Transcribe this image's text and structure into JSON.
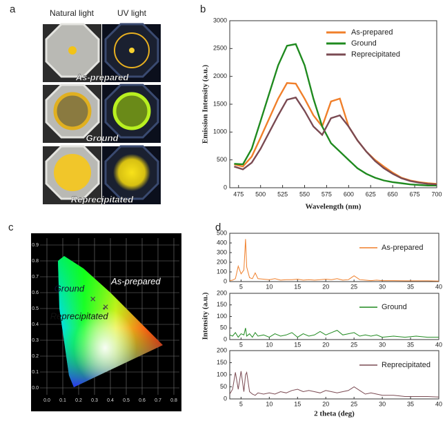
{
  "panel_labels": [
    "a",
    "b",
    "c",
    "d"
  ],
  "photos": {
    "columns": [
      "Natural light",
      "UV light"
    ],
    "rows": [
      "As-prepared",
      "Ground",
      "Reprecipitated"
    ]
  },
  "chart_data": [
    {
      "type": "line",
      "x_label": "Wavelength (nm)",
      "y_label": "Emission Intensity (a.u.)",
      "x": [
        470,
        480,
        490,
        500,
        510,
        520,
        530,
        540,
        550,
        560,
        570,
        580,
        590,
        600,
        610,
        620,
        630,
        640,
        650,
        660,
        670,
        680,
        690,
        700
      ],
      "series": [
        {
          "name": "As-prepared",
          "color": "#f07f2a",
          "values": [
            420,
            380,
            560,
            900,
            1250,
            1600,
            1880,
            1870,
            1600,
            1300,
            1100,
            1550,
            1600,
            1100,
            850,
            650,
            500,
            380,
            270,
            180,
            130,
            100,
            80,
            70
          ]
        },
        {
          "name": "Ground",
          "color": "#1f8a1f",
          "values": [
            430,
            420,
            700,
            1200,
            1700,
            2200,
            2550,
            2580,
            2200,
            1600,
            1100,
            800,
            650,
            500,
            350,
            250,
            180,
            130,
            100,
            80,
            60,
            50,
            40,
            40
          ]
        },
        {
          "name": "Reprecipitated",
          "color": "#7a4a52",
          "values": [
            380,
            330,
            450,
            700,
            1000,
            1300,
            1580,
            1620,
            1380,
            1100,
            950,
            1250,
            1300,
            1100,
            850,
            650,
            480,
            350,
            250,
            170,
            120,
            90,
            70,
            60
          ]
        }
      ],
      "xlim": [
        465,
        700
      ],
      "xticks": [
        475,
        500,
        525,
        550,
        575,
        600,
        625,
        650,
        675,
        700
      ],
      "ylim": [
        0,
        3000
      ],
      "yticks": [
        0,
        500,
        1000,
        1500,
        2000,
        2500,
        3000
      ],
      "legend": "upper right"
    },
    {
      "type": "cie",
      "points": [
        {
          "name": "Ground",
          "x": 0.29,
          "y": 0.56
        },
        {
          "name": "As-prepared",
          "x": 0.37,
          "y": 0.51
        },
        {
          "name": "Reprecipitated",
          "x": 0.36,
          "y": 0.5
        }
      ],
      "xlim": [
        0,
        0.8
      ],
      "xticks": [
        {
          "value": 0,
          "label": "0.0"
        },
        {
          "value": 0.1,
          "label": "0.1"
        },
        {
          "value": 0.2,
          "label": "0.2"
        },
        {
          "value": 0.3,
          "label": "0.3"
        },
        {
          "value": 0.4,
          "label": "0.4"
        },
        {
          "value": 0.5,
          "label": "0.5"
        },
        {
          "value": 0.6,
          "label": "0.6"
        },
        {
          "value": 0.7,
          "label": "0.7"
        },
        {
          "value": 0.8,
          "label": "0.8"
        }
      ],
      "ylim": [
        0,
        0.9
      ],
      "yticks": [
        {
          "value": 0,
          "label": "0.0"
        },
        0.1,
        0.2,
        0.3,
        0.4,
        0.5,
        0.6,
        0.7,
        0.8,
        0.9
      ],
      "grid": true
    },
    {
      "type": "stacked_line",
      "x_label": "2 theta (deg)",
      "y_label": "Intensity (a.u.)",
      "x": [
        3,
        3.5,
        4,
        4.5,
        5,
        5.5,
        5.8,
        6,
        6.5,
        7,
        7.5,
        8,
        9,
        10,
        11,
        12,
        13,
        14,
        15,
        16,
        17,
        18,
        19,
        20,
        21,
        22,
        23,
        24,
        25,
        26,
        27,
        28,
        29,
        30,
        32,
        34,
        36,
        38,
        40
      ],
      "xlim": [
        3,
        40
      ],
      "xticks": [
        5,
        10,
        15,
        20,
        25,
        30,
        35,
        40
      ],
      "series": [
        {
          "name": "As-prepared",
          "color": "#f07f2a",
          "ylim": [
            0,
            500
          ],
          "yticks": [
            0,
            100,
            200,
            300,
            400,
            500
          ],
          "values": [
            10,
            15,
            30,
            160,
            80,
            120,
            440,
            150,
            40,
            30,
            90,
            30,
            25,
            20,
            30,
            15,
            20,
            20,
            25,
            15,
            20,
            15,
            20,
            25,
            20,
            30,
            15,
            20,
            60,
            20,
            15,
            10,
            15,
            10,
            10,
            8,
            8,
            8,
            5
          ]
        },
        {
          "name": "Ground",
          "color": "#1f8a1f",
          "ylim": [
            0,
            200
          ],
          "yticks": [
            0,
            50,
            100,
            150,
            200
          ],
          "values": [
            20,
            15,
            30,
            10,
            25,
            20,
            50,
            15,
            25,
            10,
            30,
            15,
            20,
            10,
            25,
            15,
            20,
            30,
            10,
            25,
            15,
            20,
            35,
            20,
            30,
            40,
            20,
            25,
            30,
            15,
            20,
            15,
            20,
            10,
            15,
            10,
            15,
            10,
            10
          ]
        },
        {
          "name": "Reprecipitated",
          "color": "#7a4a52",
          "ylim": [
            0,
            200
          ],
          "yticks": [
            0,
            50,
            100,
            150,
            200
          ],
          "values": [
            20,
            40,
            110,
            40,
            115,
            30,
            100,
            110,
            30,
            20,
            15,
            25,
            20,
            25,
            20,
            30,
            25,
            35,
            40,
            30,
            35,
            30,
            25,
            35,
            30,
            25,
            30,
            35,
            50,
            35,
            20,
            25,
            20,
            15,
            15,
            10,
            10,
            10,
            8
          ]
        }
      ]
    }
  ]
}
